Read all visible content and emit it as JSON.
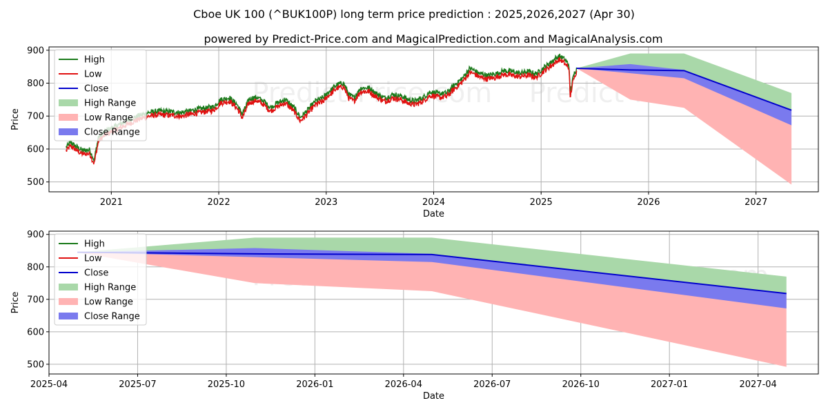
{
  "title": "Cboe UK 100 (^BUK100P) long term price prediction : 2025,2026,2027 (Apr 30)",
  "subtitle": "powered by Predict-Price.com and MagicalPrediction.com and MagicalAnalysis.com",
  "watermark": "Predict-Price.com",
  "colors": {
    "high": "#1a7a1a",
    "low": "#e01010",
    "close": "#0000cc",
    "high_range": "#a9d8a9",
    "low_range": "#ffb3b3",
    "close_range": "#7a7aee",
    "grid": "#b0b0b0"
  },
  "legend": [
    "High",
    "Low",
    "Close",
    "High Range",
    "Low Range",
    "Close Range"
  ],
  "chart_data": [
    {
      "type": "line",
      "name": "history",
      "xlabel": "Date",
      "ylabel": "Price",
      "xlim": [
        2020.42,
        2027.58
      ],
      "ylim": [
        470,
        910
      ],
      "x_ticks": [
        2021,
        2022,
        2023,
        2024,
        2025,
        2026,
        2027
      ],
      "x_tick_labels": [
        "2021",
        "2022",
        "2023",
        "2024",
        "2025",
        "2026",
        "2027"
      ],
      "y_ticks": [
        500,
        600,
        700,
        800,
        900
      ],
      "history_anchors": [
        [
          2020.58,
          600
        ],
        [
          2020.62,
          615
        ],
        [
          2020.68,
          600
        ],
        [
          2020.74,
          590
        ],
        [
          2020.8,
          592
        ],
        [
          2020.84,
          560
        ],
        [
          2020.88,
          630
        ],
        [
          2020.95,
          650
        ],
        [
          2021.05,
          665
        ],
        [
          2021.15,
          680
        ],
        [
          2021.25,
          695
        ],
        [
          2021.35,
          705
        ],
        [
          2021.45,
          710
        ],
        [
          2021.55,
          708
        ],
        [
          2021.65,
          705
        ],
        [
          2021.75,
          712
        ],
        [
          2021.85,
          718
        ],
        [
          2021.95,
          722
        ],
        [
          2022.02,
          745
        ],
        [
          2022.1,
          750
        ],
        [
          2022.17,
          730
        ],
        [
          2022.22,
          700
        ],
        [
          2022.28,
          745
        ],
        [
          2022.35,
          752
        ],
        [
          2022.42,
          740
        ],
        [
          2022.48,
          720
        ],
        [
          2022.55,
          735
        ],
        [
          2022.62,
          745
        ],
        [
          2022.7,
          720
        ],
        [
          2022.76,
          690
        ],
        [
          2022.82,
          710
        ],
        [
          2022.9,
          740
        ],
        [
          2022.97,
          750
        ],
        [
          2023.03,
          770
        ],
        [
          2023.1,
          790
        ],
        [
          2023.16,
          795
        ],
        [
          2023.21,
          760
        ],
        [
          2023.26,
          750
        ],
        [
          2023.32,
          780
        ],
        [
          2023.4,
          780
        ],
        [
          2023.48,
          760
        ],
        [
          2023.55,
          750
        ],
        [
          2023.62,
          760
        ],
        [
          2023.7,
          755
        ],
        [
          2023.76,
          745
        ],
        [
          2023.82,
          740
        ],
        [
          2023.9,
          750
        ],
        [
          2023.97,
          768
        ],
        [
          2024.05,
          762
        ],
        [
          2024.12,
          765
        ],
        [
          2024.2,
          790
        ],
        [
          2024.27,
          810
        ],
        [
          2024.34,
          840
        ],
        [
          2024.42,
          825
        ],
        [
          2024.5,
          818
        ],
        [
          2024.58,
          823
        ],
        [
          2024.65,
          832
        ],
        [
          2024.72,
          830
        ],
        [
          2024.8,
          825
        ],
        [
          2024.88,
          830
        ],
        [
          2024.95,
          822
        ],
        [
          2025.02,
          840
        ],
        [
          2025.1,
          860
        ],
        [
          2025.17,
          878
        ],
        [
          2025.22,
          865
        ],
        [
          2025.26,
          850
        ],
        [
          2025.27,
          760
        ],
        [
          2025.29,
          800
        ],
        [
          2025.31,
          825
        ],
        [
          2025.33,
          842
        ]
      ]
    },
    {
      "type": "area",
      "name": "forecast",
      "xlabel": "Date",
      "ylabel": "Price",
      "xlim": [
        2025.25,
        2027.42
      ],
      "ylim": [
        470,
        910
      ],
      "x_ticks": [
        2025.25,
        2025.5,
        2025.75,
        2026.0,
        2026.25,
        2026.5,
        2026.75,
        2027.0,
        2027.25
      ],
      "x_tick_labels": [
        "2025-04",
        "2025-07",
        "2025-10",
        "2026-01",
        "2026-04",
        "2026-07",
        "2026-10",
        "2027-01",
        "2027-04"
      ],
      "y_ticks": [
        500,
        600,
        700,
        800,
        900
      ],
      "x": [
        2025.33,
        2025.83,
        2026.33,
        2027.33
      ],
      "series": [
        {
          "name": "High Range Upper",
          "values": [
            845,
            890,
            890,
            770
          ]
        },
        {
          "name": "Low Range Lower",
          "values": [
            845,
            750,
            725,
            492
          ]
        },
        {
          "name": "Close Range Upper",
          "values": [
            845,
            858,
            840,
            718
          ]
        },
        {
          "name": "Close Range Lower",
          "values": [
            845,
            830,
            815,
            672
          ]
        },
        {
          "name": "Close",
          "values": [
            845,
            840,
            838,
            718
          ]
        }
      ]
    }
  ]
}
